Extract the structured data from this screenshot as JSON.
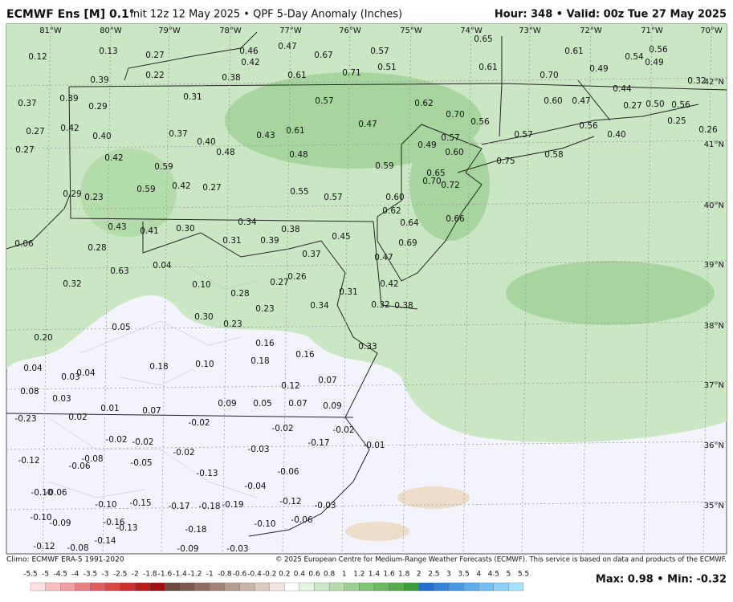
{
  "header": {
    "model": "ECMWF Ens [M] 0.1°",
    "description": "Init 12z 12 May 2025 • QPF 5-Day Anomaly (Inches)",
    "info": "Hour: 348 • Valid: 00z Tue 27 May 2025"
  },
  "map": {
    "lon_labels": [
      "81°W",
      "80°W",
      "79°W",
      "78°W",
      "77°W",
      "76°W",
      "75°W",
      "74°W",
      "73°W",
      "72°W",
      "71°W",
      "70°W"
    ],
    "lat_labels": [
      "42°N",
      "41°N",
      "40°N",
      "39°N",
      "38°N",
      "37°N",
      "36°N",
      "35°N"
    ],
    "values": [
      "0.12",
      "0.13",
      "0.27",
      "0.46",
      "0.47",
      "0.67",
      "0.57",
      "0.65",
      "0.61",
      "0.54",
      "0.56",
      "0.49",
      "0.22",
      "0.42",
      "0.61",
      "0.71",
      "0.51",
      "0.61",
      "0.70",
      "0.49",
      "0.32",
      "0.39",
      "0.38",
      "0.37",
      "0.39",
      "0.29",
      "0.31",
      "0.57",
      "0.62",
      "0.70",
      "0.60",
      "0.47",
      "0.44",
      "0.27",
      "0.50",
      "0.56",
      "0.27",
      "0.42",
      "0.40",
      "0.37",
      "0.40",
      "0.61",
      "0.47",
      "0.56",
      "0.57",
      "0.57",
      "0.56",
      "0.40",
      "0.25",
      "0.26",
      "0.27",
      "0.42",
      "0.48",
      "0.43",
      "0.48",
      "0.49",
      "0.60",
      "0.59",
      "0.58",
      "0.75",
      "0.59",
      "0.65",
      "0.70",
      "0.72",
      "0.59",
      "0.42",
      "0.27",
      "0.55",
      "0.57",
      "0.60",
      "0.29",
      "0.23",
      "0.62",
      "0.66",
      "0.64",
      "0.43",
      "0.41",
      "0.30",
      "0.34",
      "0.38",
      "0.31",
      "0.39",
      "0.45",
      "0.06",
      "0.28",
      "0.69",
      "0.37",
      "0.47",
      "0.04",
      "0.63",
      "0.26",
      "0.32",
      "0.10",
      "0.27",
      "0.42",
      "0.31",
      "0.28",
      "0.32",
      "0.38",
      "0.34",
      "0.23",
      "0.30",
      "0.23",
      "0.05",
      "0.20",
      "0.16",
      "0.16",
      "0.33",
      "0.18",
      "0.10",
      "0.18",
      "0.04",
      "0.04",
      "0.03",
      "0.07",
      "0.12",
      "0.08",
      "0.03",
      "0.09",
      "0.05",
      "0.07",
      "0.09",
      "0.01",
      "0.07",
      "-0.23",
      "0.02",
      "-0.02",
      "-0.02",
      "-0.02",
      "-0.02",
      "-0.02",
      "-0.17",
      "-0.01",
      "-0.08",
      "-0.12",
      "-0.06",
      "-0.05",
      "-0.02",
      "-0.03",
      "-0.06",
      "-0.13",
      "-0.06",
      "-0.10",
      "-0.04",
      "-0.10",
      "-0.15",
      "-0.17",
      "-0.18",
      "-0.19",
      "-0.12",
      "-0.03",
      "-0.16",
      "-0.13",
      "-0.09",
      "-0.10",
      "-0.10",
      "-0.06",
      "-0.18",
      "-0.14",
      "-0.08",
      "-0.12",
      "-0.09",
      "-0.03"
    ]
  },
  "colorbar": {
    "labels": [
      "-5.5",
      "-5",
      "-4.5",
      "-4",
      "-3.5",
      "-3",
      "-2.5",
      "-2",
      "-1.8",
      "-1.6",
      "-1.4",
      "-1.2",
      "-1",
      "-0.8",
      "-0.6",
      "-0.4",
      "-0.2",
      "0.2",
      "0.4",
      "0.6",
      "0.8",
      "1",
      "1.2",
      "1.4",
      "1.6",
      "1.8",
      "2",
      "2.5",
      "3",
      "3.5",
      "4",
      "4.5",
      "5",
      "5.5"
    ]
  },
  "footer": {
    "climo": "Climo: ECMWF ERA-5 1991-2020",
    "copyright": "© 2025 European Centre for Medium-Range Weather Forecasts (ECMWF). This service is based on data and products of the ECMWF.",
    "maxmin": "Max: 0.98 • Min: -0.32"
  }
}
